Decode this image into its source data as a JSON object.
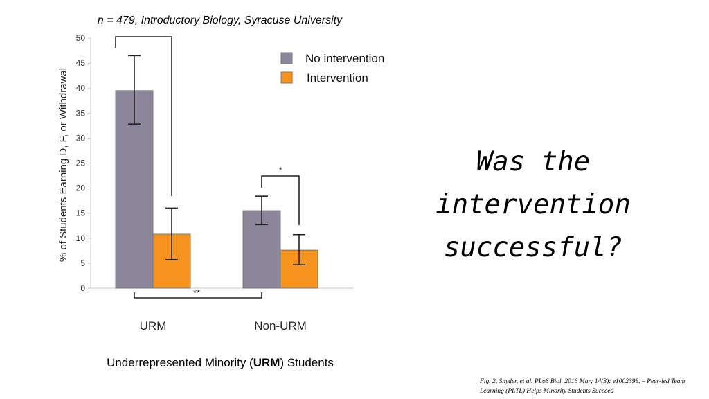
{
  "chart_data": {
    "type": "bar",
    "title": "n = 479, Introductory Biology, Syracuse University",
    "ylabel": "% of Students Earning D, F, or Withdrawal",
    "xlabel": "",
    "ylim": [
      0,
      50
    ],
    "yticks": [
      0,
      5,
      10,
      15,
      20,
      25,
      30,
      35,
      40,
      45,
      50
    ],
    "categories": [
      "URM",
      "Non-URM"
    ],
    "series": [
      {
        "name": "No intervention",
        "color": "#8b8699",
        "values": [
          39.5,
          15.5
        ],
        "error_low": [
          32.8,
          12.7
        ],
        "error_high": [
          46.5,
          18.4
        ]
      },
      {
        "name": "Intervention",
        "color": "#f7941d",
        "values": [
          10.8,
          7.6
        ],
        "error_low": [
          5.7,
          4.7
        ],
        "error_high": [
          16.0,
          10.7
        ]
      }
    ],
    "legend_position": "top-right",
    "significance": [
      {
        "label": "",
        "between": "URM No intervention vs URM Intervention"
      },
      {
        "label": "*",
        "between": "Non-URM No intervention vs Non-URM Intervention"
      },
      {
        "label": "**",
        "between": "URM No intervention vs Non-URM No intervention"
      }
    ]
  },
  "question": [
    "Was the",
    "intervention",
    "successful?"
  ],
  "footer_label": {
    "pre": "Underrepresented Minority (",
    "bold": "URM",
    "post": ") Students"
  },
  "citation": "Fig. 2, Snyder, et al. PLoS Biol. 2016 Mar; 14(3): e1002398. – Peer-led Team Learning (PLTL) Helps Minority Students Succeed"
}
